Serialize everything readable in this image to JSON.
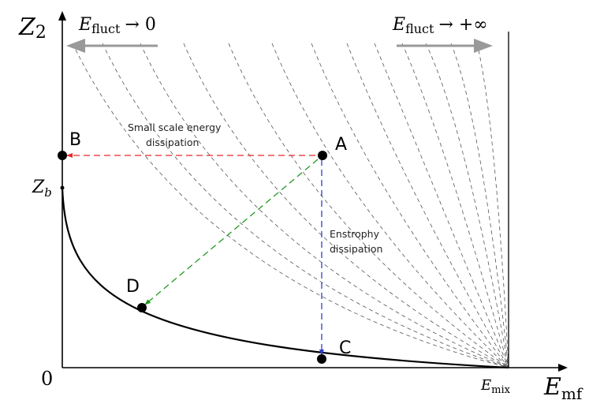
{
  "axes": {
    "y_label_main": "Z",
    "y_label_sub": "2",
    "x_label_main": "E",
    "x_label_sub": "mf",
    "origin_label": "0",
    "zb_main": "Z",
    "zb_sub": "b",
    "emix_main": "E",
    "emix_sub": "mix"
  },
  "header": {
    "left_main": "E",
    "left_sub": "fluct",
    "left_tail": "→ 0",
    "right_main": "E",
    "right_sub": "fluct",
    "right_tail": "→ +∞"
  },
  "points": {
    "A": "A",
    "B": "B",
    "C": "C",
    "D": "D"
  },
  "annotations": {
    "small_scale_line1": "Small scale energy",
    "small_scale_line2": "dissipation",
    "enstrophy_line1": "Enstrophy",
    "enstrophy_line2": "dissipation"
  },
  "colors": {
    "red_arrow": "#e8272e",
    "blue_arrow": "#2f3ec9",
    "green_arrow": "#1f9a1f",
    "grey_arrow": "#999999",
    "contour": "#555555"
  }
}
